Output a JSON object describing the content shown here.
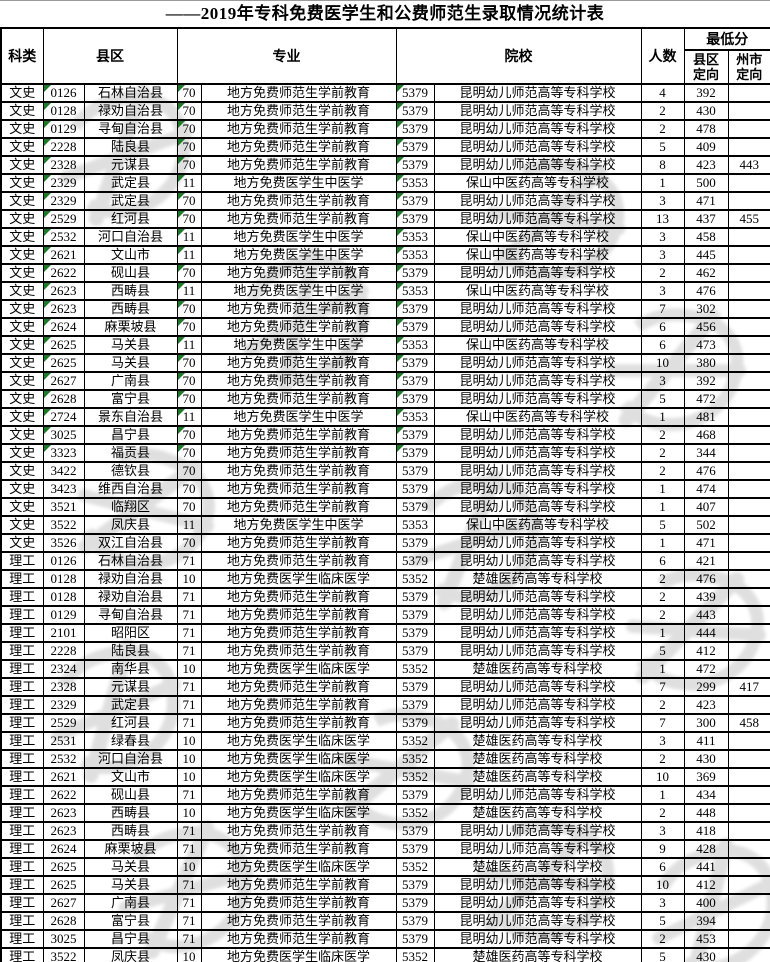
{
  "title": "——2019年专科免费医学生和公费师范生录取情况统计表",
  "colors": {
    "triangle_green": "#1e7a28",
    "grid_border": "#000000",
    "watermark_gray": "#8f8f8f",
    "background": "#ffffff"
  },
  "table": {
    "headers": {
      "subject": "科类",
      "county": "县区",
      "major": "专业",
      "school": "院校",
      "count": "人数",
      "min_score": "最低分",
      "score_county": "县区定向",
      "score_city": "州市定向"
    },
    "rows": [
      {
        "subject": "文史",
        "code": "0126",
        "county": "石林自治县",
        "mcode": "70",
        "major": "地方免费师范生学前教育",
        "icode": "5379",
        "school": "昆明幼儿师范高等专科学校",
        "n": "4",
        "s1": "392",
        "s2": "",
        "tri": true
      },
      {
        "subject": "文史",
        "code": "0128",
        "county": "禄劝自治县",
        "mcode": "70",
        "major": "地方免费师范生学前教育",
        "icode": "5379",
        "school": "昆明幼儿师范高等专科学校",
        "n": "2",
        "s1": "430",
        "s2": "",
        "tri": true
      },
      {
        "subject": "文史",
        "code": "0129",
        "county": "寻甸自治县",
        "mcode": "70",
        "major": "地方免费师范生学前教育",
        "icode": "5379",
        "school": "昆明幼儿师范高等专科学校",
        "n": "2",
        "s1": "478",
        "s2": "",
        "tri": true
      },
      {
        "subject": "文史",
        "code": "2228",
        "county": "陆良县",
        "mcode": "70",
        "major": "地方免费师范生学前教育",
        "icode": "5379",
        "school": "昆明幼儿师范高等专科学校",
        "n": "5",
        "s1": "409",
        "s2": "",
        "tri": true
      },
      {
        "subject": "文史",
        "code": "2328",
        "county": "元谋县",
        "mcode": "70",
        "major": "地方免费师范生学前教育",
        "icode": "5379",
        "school": "昆明幼儿师范高等专科学校",
        "n": "8",
        "s1": "423",
        "s2": "443",
        "tri": true
      },
      {
        "subject": "文史",
        "code": "2329",
        "county": "武定县",
        "mcode": "11",
        "major": "地方免费医学生中医学",
        "icode": "5353",
        "school": "保山中医药高等专科学校",
        "n": "1",
        "s1": "500",
        "s2": "",
        "tri": true
      },
      {
        "subject": "文史",
        "code": "2329",
        "county": "武定县",
        "mcode": "70",
        "major": "地方免费师范生学前教育",
        "icode": "5379",
        "school": "昆明幼儿师范高等专科学校",
        "n": "3",
        "s1": "471",
        "s2": "",
        "tri": true
      },
      {
        "subject": "文史",
        "code": "2529",
        "county": "红河县",
        "mcode": "70",
        "major": "地方免费师范生学前教育",
        "icode": "5379",
        "school": "昆明幼儿师范高等专科学校",
        "n": "13",
        "s1": "437",
        "s2": "455",
        "tri": true
      },
      {
        "subject": "文史",
        "code": "2532",
        "county": "河口自治县",
        "mcode": "11",
        "major": "地方免费医学生中医学",
        "icode": "5353",
        "school": "保山中医药高等专科学校",
        "n": "3",
        "s1": "458",
        "s2": "",
        "tri": true
      },
      {
        "subject": "文史",
        "code": "2621",
        "county": "文山市",
        "mcode": "11",
        "major": "地方免费医学生中医学",
        "icode": "5353",
        "school": "保山中医药高等专科学校",
        "n": "3",
        "s1": "445",
        "s2": "",
        "tri": true
      },
      {
        "subject": "文史",
        "code": "2622",
        "county": "砚山县",
        "mcode": "70",
        "major": "地方免费师范生学前教育",
        "icode": "5379",
        "school": "昆明幼儿师范高等专科学校",
        "n": "2",
        "s1": "462",
        "s2": "",
        "tri": true
      },
      {
        "subject": "文史",
        "code": "2623",
        "county": "西畴县",
        "mcode": "11",
        "major": "地方免费医学生中医学",
        "icode": "5353",
        "school": "保山中医药高等专科学校",
        "n": "3",
        "s1": "476",
        "s2": "",
        "tri": true
      },
      {
        "subject": "文史",
        "code": "2623",
        "county": "西畴县",
        "mcode": "70",
        "major": "地方免费师范生学前教育",
        "icode": "5379",
        "school": "昆明幼儿师范高等专科学校",
        "n": "7",
        "s1": "302",
        "s2": "",
        "tri": true
      },
      {
        "subject": "文史",
        "code": "2624",
        "county": "麻栗坡县",
        "mcode": "70",
        "major": "地方免费师范生学前教育",
        "icode": "5379",
        "school": "昆明幼儿师范高等专科学校",
        "n": "6",
        "s1": "456",
        "s2": "",
        "tri": true
      },
      {
        "subject": "文史",
        "code": "2625",
        "county": "马关县",
        "mcode": "11",
        "major": "地方免费医学生中医学",
        "icode": "5353",
        "school": "保山中医药高等专科学校",
        "n": "6",
        "s1": "473",
        "s2": "",
        "tri": true
      },
      {
        "subject": "文史",
        "code": "2625",
        "county": "马关县",
        "mcode": "70",
        "major": "地方免费师范生学前教育",
        "icode": "5379",
        "school": "昆明幼儿师范高等专科学校",
        "n": "10",
        "s1": "380",
        "s2": "",
        "tri": true
      },
      {
        "subject": "文史",
        "code": "2627",
        "county": "广南县",
        "mcode": "70",
        "major": "地方免费师范生学前教育",
        "icode": "5379",
        "school": "昆明幼儿师范高等专科学校",
        "n": "3",
        "s1": "392",
        "s2": "",
        "tri": true
      },
      {
        "subject": "文史",
        "code": "2628",
        "county": "富宁县",
        "mcode": "70",
        "major": "地方免费师范生学前教育",
        "icode": "5379",
        "school": "昆明幼儿师范高等专科学校",
        "n": "5",
        "s1": "472",
        "s2": "",
        "tri": true
      },
      {
        "subject": "文史",
        "code": "2724",
        "county": "景东自治县",
        "mcode": "11",
        "major": "地方免费医学生中医学",
        "icode": "5353",
        "school": "保山中医药高等专科学校",
        "n": "1",
        "s1": "481",
        "s2": "",
        "tri": true
      },
      {
        "subject": "文史",
        "code": "3025",
        "county": "昌宁县",
        "mcode": "70",
        "major": "地方免费师范生学前教育",
        "icode": "5379",
        "school": "昆明幼儿师范高等专科学校",
        "n": "2",
        "s1": "468",
        "s2": "",
        "tri": true
      },
      {
        "subject": "文史",
        "code": "3323",
        "county": "福贡县",
        "mcode": "70",
        "major": "地方免费师范生学前教育",
        "icode": "5379",
        "school": "昆明幼儿师范高等专科学校",
        "n": "2",
        "s1": "344",
        "s2": "",
        "tri": true
      },
      {
        "subject": "文史",
        "code": "3422",
        "county": "德钦县",
        "mcode": "70",
        "major": "地方免费师范生学前教育",
        "icode": "5379",
        "school": "昆明幼儿师范高等专科学校",
        "n": "2",
        "s1": "476",
        "s2": "",
        "tri": false
      },
      {
        "subject": "文史",
        "code": "3423",
        "county": "维西自治县",
        "mcode": "70",
        "major": "地方免费师范生学前教育",
        "icode": "5379",
        "school": "昆明幼儿师范高等专科学校",
        "n": "1",
        "s1": "474",
        "s2": "",
        "tri": false
      },
      {
        "subject": "文史",
        "code": "3521",
        "county": "临翔区",
        "mcode": "70",
        "major": "地方免费师范生学前教育",
        "icode": "5379",
        "school": "昆明幼儿师范高等专科学校",
        "n": "1",
        "s1": "407",
        "s2": "",
        "tri": false
      },
      {
        "subject": "文史",
        "code": "3522",
        "county": "凤庆县",
        "mcode": "11",
        "major": "地方免费医学生中医学",
        "icode": "5353",
        "school": "保山中医药高等专科学校",
        "n": "5",
        "s1": "502",
        "s2": "",
        "tri": false
      },
      {
        "subject": "文史",
        "code": "3526",
        "county": "双江自治县",
        "mcode": "70",
        "major": "地方免费师范生学前教育",
        "icode": "5379",
        "school": "昆明幼儿师范高等专科学校",
        "n": "1",
        "s1": "471",
        "s2": "",
        "tri": false
      },
      {
        "subject": "理工",
        "code": "0126",
        "county": "石林自治县",
        "mcode": "71",
        "major": "地方免费师范生学前教育",
        "icode": "5379",
        "school": "昆明幼儿师范高等专科学校",
        "n": "6",
        "s1": "421",
        "s2": "",
        "tri": false
      },
      {
        "subject": "理工",
        "code": "0128",
        "county": "禄劝自治县",
        "mcode": "10",
        "major": "地方免费医学生临床医学",
        "icode": "5352",
        "school": "楚雄医药高等专科学校",
        "n": "2",
        "s1": "476",
        "s2": "",
        "tri": false
      },
      {
        "subject": "理工",
        "code": "0128",
        "county": "禄劝自治县",
        "mcode": "71",
        "major": "地方免费师范生学前教育",
        "icode": "5379",
        "school": "昆明幼儿师范高等专科学校",
        "n": "2",
        "s1": "439",
        "s2": "",
        "tri": false
      },
      {
        "subject": "理工",
        "code": "0129",
        "county": "寻甸自治县",
        "mcode": "71",
        "major": "地方免费师范生学前教育",
        "icode": "5379",
        "school": "昆明幼儿师范高等专科学校",
        "n": "2",
        "s1": "443",
        "s2": "",
        "tri": false
      },
      {
        "subject": "理工",
        "code": "2101",
        "county": "昭阳区",
        "mcode": "71",
        "major": "地方免费师范生学前教育",
        "icode": "5379",
        "school": "昆明幼儿师范高等专科学校",
        "n": "1",
        "s1": "444",
        "s2": "",
        "tri": false
      },
      {
        "subject": "理工",
        "code": "2228",
        "county": "陆良县",
        "mcode": "71",
        "major": "地方免费师范生学前教育",
        "icode": "5379",
        "school": "昆明幼儿师范高等专科学校",
        "n": "5",
        "s1": "412",
        "s2": "",
        "tri": false
      },
      {
        "subject": "理工",
        "code": "2324",
        "county": "南华县",
        "mcode": "10",
        "major": "地方免费医学生临床医学",
        "icode": "5352",
        "school": "楚雄医药高等专科学校",
        "n": "1",
        "s1": "472",
        "s2": "",
        "tri": false
      },
      {
        "subject": "理工",
        "code": "2328",
        "county": "元谋县",
        "mcode": "71",
        "major": "地方免费师范生学前教育",
        "icode": "5379",
        "school": "昆明幼儿师范高等专科学校",
        "n": "7",
        "s1": "299",
        "s2": "417",
        "tri": false
      },
      {
        "subject": "理工",
        "code": "2329",
        "county": "武定县",
        "mcode": "71",
        "major": "地方免费师范生学前教育",
        "icode": "5379",
        "school": "昆明幼儿师范高等专科学校",
        "n": "2",
        "s1": "423",
        "s2": "",
        "tri": false
      },
      {
        "subject": "理工",
        "code": "2529",
        "county": "红河县",
        "mcode": "71",
        "major": "地方免费师范生学前教育",
        "icode": "5379",
        "school": "昆明幼儿师范高等专科学校",
        "n": "7",
        "s1": "300",
        "s2": "458",
        "tri": false
      },
      {
        "subject": "理工",
        "code": "2531",
        "county": "绿春县",
        "mcode": "10",
        "major": "地方免费医学生临床医学",
        "icode": "5352",
        "school": "楚雄医药高等专科学校",
        "n": "3",
        "s1": "411",
        "s2": "",
        "tri": false
      },
      {
        "subject": "理工",
        "code": "2532",
        "county": "河口自治县",
        "mcode": "10",
        "major": "地方免费医学生临床医学",
        "icode": "5352",
        "school": "楚雄医药高等专科学校",
        "n": "2",
        "s1": "430",
        "s2": "",
        "tri": false
      },
      {
        "subject": "理工",
        "code": "2621",
        "county": "文山市",
        "mcode": "10",
        "major": "地方免费医学生临床医学",
        "icode": "5352",
        "school": "楚雄医药高等专科学校",
        "n": "10",
        "s1": "369",
        "s2": "",
        "tri": false
      },
      {
        "subject": "理工",
        "code": "2622",
        "county": "砚山县",
        "mcode": "71",
        "major": "地方免费师范生学前教育",
        "icode": "5379",
        "school": "昆明幼儿师范高等专科学校",
        "n": "1",
        "s1": "434",
        "s2": "",
        "tri": false
      },
      {
        "subject": "理工",
        "code": "2623",
        "county": "西畴县",
        "mcode": "10",
        "major": "地方免费医学生临床医学",
        "icode": "5352",
        "school": "楚雄医药高等专科学校",
        "n": "2",
        "s1": "448",
        "s2": "",
        "tri": false
      },
      {
        "subject": "理工",
        "code": "2623",
        "county": "西畴县",
        "mcode": "71",
        "major": "地方免费师范生学前教育",
        "icode": "5379",
        "school": "昆明幼儿师范高等专科学校",
        "n": "3",
        "s1": "418",
        "s2": "",
        "tri": false
      },
      {
        "subject": "理工",
        "code": "2624",
        "county": "麻栗坡县",
        "mcode": "71",
        "major": "地方免费师范生学前教育",
        "icode": "5379",
        "school": "昆明幼儿师范高等专科学校",
        "n": "9",
        "s1": "428",
        "s2": "",
        "tri": false
      },
      {
        "subject": "理工",
        "code": "2625",
        "county": "马关县",
        "mcode": "10",
        "major": "地方免费医学生临床医学",
        "icode": "5352",
        "school": "楚雄医药高等专科学校",
        "n": "6",
        "s1": "441",
        "s2": "",
        "tri": false
      },
      {
        "subject": "理工",
        "code": "2625",
        "county": "马关县",
        "mcode": "71",
        "major": "地方免费师范生学前教育",
        "icode": "5379",
        "school": "昆明幼儿师范高等专科学校",
        "n": "10",
        "s1": "412",
        "s2": "",
        "tri": false
      },
      {
        "subject": "理工",
        "code": "2627",
        "county": "广南县",
        "mcode": "71",
        "major": "地方免费师范生学前教育",
        "icode": "5379",
        "school": "昆明幼儿师范高等专科学校",
        "n": "3",
        "s1": "400",
        "s2": "",
        "tri": false
      },
      {
        "subject": "理工",
        "code": "2628",
        "county": "富宁县",
        "mcode": "71",
        "major": "地方免费师范生学前教育",
        "icode": "5379",
        "school": "昆明幼儿师范高等专科学校",
        "n": "5",
        "s1": "394",
        "s2": "",
        "tri": false
      },
      {
        "subject": "理工",
        "code": "3025",
        "county": "昌宁县",
        "mcode": "71",
        "major": "地方免费师范生学前教育",
        "icode": "5379",
        "school": "昆明幼儿师范高等专科学校",
        "n": "2",
        "s1": "453",
        "s2": "",
        "tri": false
      },
      {
        "subject": "理工",
        "code": "3522",
        "county": "凤庆县",
        "mcode": "10",
        "major": "地方免费医学生临床医学",
        "icode": "5352",
        "school": "楚雄医药高等专科学校",
        "n": "5",
        "s1": "430",
        "s2": "",
        "tri": false
      }
    ]
  }
}
